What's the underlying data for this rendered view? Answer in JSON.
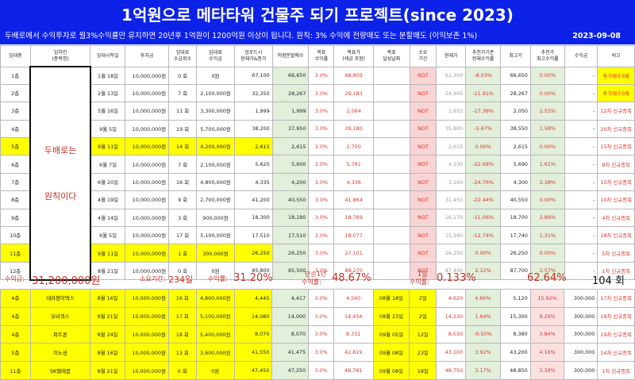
{
  "header": {
    "title": "1억원으로 메타타워 건물주 되기 프로젝트(since 2023)",
    "description": "두배로에서 수익투자로 월3%수익률만 유지하면 20년후 1억원이 1200억원 이상이 됩니다. 원칙: 3% 수익에 전량매도 또는 분할매도 (이익보존 1%)",
    "date": "2023-09-08"
  },
  "columns": [
    "임대층",
    "임차인\n(종목명)",
    "임대시작일",
    "투자금",
    "임대료\n수금회수",
    "임대료\n수익금",
    "업로드시\n현재가&종가",
    "저점분할매수",
    "목표\n수익률",
    "목표가\n(세금 포함)",
    "목표\n달성날짜",
    "소요\n기간",
    "현재가",
    "추천가기준\n현재수익률",
    "최고가",
    "추천가\n최고수익률",
    "수익금",
    "비고"
  ],
  "tenant_note": {
    "line1": "두배로는",
    "line2": "원칙이다"
  },
  "rows": [
    {
      "floor": "1층",
      "start": "1월 18일",
      "invest": "10,000,000원",
      "count": "0 회",
      "income": "0원",
      "upload": "67,100",
      "low": "66,650",
      "target_rate": "3.0%",
      "target": "68,809",
      "achieved": "",
      "period": "NOT",
      "current": "61,300",
      "cur_rate": "-8.03%",
      "high": "66,650",
      "high_rate": "0.00%",
      "profit": "-",
      "note": "추가매수5배"
    },
    {
      "floor": "2층",
      "start": "2월 13일",
      "invest": "10,000,000원",
      "count": "7 회",
      "income": "2,100,000원",
      "upload": "32,350",
      "low": "28,267",
      "target_rate": "3.0%",
      "target": "29,183",
      "achieved": "",
      "period": "NOT",
      "current": "24,900",
      "cur_rate": "-11.91%",
      "high": "28,267",
      "high_rate": "0.00%",
      "profit": "-",
      "note": "추가매수5배"
    },
    {
      "floor": "3층",
      "start": "5월 16일",
      "invest": "10,000,000원",
      "count": "11 회",
      "income": "3,300,000원",
      "upload": "1,999",
      "low": "1,999",
      "target_rate": "3.0%",
      "target": "2,064",
      "achieved": "",
      "period": "NOT",
      "current": "1,652",
      "cur_rate": "-17.36%",
      "high": "2,050",
      "high_rate": "2.55%",
      "profit": "-",
      "note": "12차 신규종목"
    },
    {
      "floor": "4층",
      "start": "9월 5일",
      "invest": "10,000,000원",
      "count": "19 회",
      "income": "5,700,000원",
      "upload": "38,200",
      "low": "37,950",
      "target_rate": "3.0%",
      "target": "39,180",
      "achieved": "",
      "period": "NOT",
      "current": "35,800",
      "cur_rate": "-5.67%",
      "high": "38,550",
      "high_rate": "1.58%",
      "profit": "-",
      "note": "20차 신규종목"
    },
    {
      "floor": "5층",
      "start": "9월 11일",
      "invest": "10,000,000원",
      "count": "14 회",
      "income": "4,200,000원",
      "upload": "2,615",
      "low": "2,615",
      "target_rate": "3.0%",
      "target": "2,700",
      "achieved": "",
      "period": "NOT",
      "current": "2,615",
      "cur_rate": "0.00%",
      "high": "2,615",
      "high_rate": "0.00%",
      "profit": "-",
      "note": "15차 신규종목",
      "yellow": true
    },
    {
      "floor": "6층",
      "start": "6월 7일",
      "invest": "10,000,000원",
      "count": "7 회",
      "income": "2,100,000원",
      "upload": "5,620",
      "low": "5,600",
      "target_rate": "3.0%",
      "target": "5,781",
      "achieved": "",
      "period": "NOT",
      "current": "4,330",
      "cur_rate": "-22.68%",
      "high": "5,690",
      "high_rate": "1.61%",
      "profit": "-",
      "note": "8차 신규종목"
    },
    {
      "floor": "7층",
      "start": "6월 20일",
      "invest": "10,000,000원",
      "count": "16 회",
      "income": "4,800,000원",
      "upload": "4,335",
      "low": "4,200",
      "target_rate": "3.0%",
      "target": "4,336",
      "achieved": "",
      "period": "NOT",
      "current": "3,160",
      "cur_rate": "-24.76%",
      "high": "4,300",
      "high_rate": "2.38%",
      "profit": "-",
      "note": "10차 신규종목"
    },
    {
      "floor": "8층",
      "start": "4월 19일",
      "invest": "10,000,000원",
      "count": "9 회",
      "income": "2,700,000원",
      "upload": "41,200",
      "low": "40,550",
      "target_rate": "3.0%",
      "target": "41,864",
      "achieved": "",
      "period": "NOT",
      "current": "31,450",
      "cur_rate": "-22.44%",
      "high": "40,550",
      "high_rate": "0.00%",
      "profit": "-",
      "note": "10차 신규종목"
    },
    {
      "floor": "9층",
      "start": "4월 14일",
      "invest": "10,000,000원",
      "count": "3 회",
      "income": "900,000원",
      "upload": "18,300",
      "low": "18,180",
      "target_rate": "3.0%",
      "target": "18,769",
      "achieved": "",
      "period": "NOT",
      "current": "16,170",
      "cur_rate": "-11.06%",
      "high": "18,700",
      "high_rate": "2.86%",
      "profit": "-",
      "note": "4차 신규종목"
    },
    {
      "floor": "10층",
      "start": "6월 5일",
      "invest": "10,000,000원",
      "count": "17 회",
      "income": "5,100,000원",
      "upload": "17,510",
      "low": "17,510",
      "target_rate": "3.0%",
      "target": "18,077",
      "achieved": "",
      "period": "NOT",
      "current": "15,280",
      "cur_rate": "-12.74%",
      "high": "17,740",
      "high_rate": "1.31%",
      "profit": "-",
      "note": "18차 신규종목"
    },
    {
      "floor": "11층",
      "start": "9월 11일",
      "invest": "10,000,000원",
      "count": "1 회",
      "income": "300,000원",
      "upload": "26,250",
      "low": "26,250",
      "target_rate": "3.0%",
      "target": "27,101",
      "achieved": "",
      "period": "NOT",
      "current": "26,250",
      "cur_rate": "0.00%",
      "high": "26,250",
      "high_rate": "0.00%",
      "profit": "-",
      "note": "5차 신규종목",
      "yellow": true
    },
    {
      "floor": "12층",
      "start": "8월 21일",
      "invest": "10,000,000원",
      "count": "0 회",
      "income": "0원",
      "upload": "85,800",
      "low": "85,500",
      "target_rate": "3.0%",
      "target": "88,270",
      "achieved": "",
      "period": "NOT",
      "current": "87,400",
      "cur_rate": "2.22%",
      "high": "87,700",
      "high_rate": "2.57%",
      "profit": "-",
      "note": "1차 신규종목"
    }
  ],
  "summary": {
    "profit_label": "수익금:",
    "profit_value": "31,200,000원",
    "period_label": "소요기간:",
    "period_value": "234일",
    "rate_label": "수익률:",
    "rate_value": "31.20%",
    "simple_label1": "단순1년",
    "simple_label2": "수익률:",
    "simple_value": "48.67%",
    "daily_label1": "1일",
    "daily_label2": "수익률:",
    "daily_value": "0.133%",
    "high_rate": "62.64%",
    "count": "104 회"
  },
  "completed": [
    {
      "floor": "4층",
      "name": "테라젠이텍스",
      "start": "8월 16일",
      "invest": "10,000,000원",
      "count": "16 회",
      "income": "4,800,000원",
      "upload": "4,445",
      "low": "4,417",
      "target_rate": "3.0%",
      "target": "4,560",
      "achieved": "08월 18일",
      "period": "2일",
      "current": "4,620",
      "cur_rate": "4.60%",
      "high": "5,120",
      "high_rate": "15.92%",
      "profit": "300,000",
      "note": "17차 신규종목"
    },
    {
      "floor": "4층",
      "name": "유비쿼스",
      "start": "8월 21일",
      "invest": "10,000,000원",
      "count": "17 회",
      "income": "5,100,000원",
      "upload": "14,080",
      "low": "14,000",
      "target_rate": "3.0%",
      "target": "14,454",
      "achieved": "08월 23일",
      "period": "2일",
      "current": "14,230",
      "cur_rate": "1.64%",
      "high": "15,300",
      "high_rate": "9.29%",
      "profit": "300,000",
      "note": "18차 신규종목"
    },
    {
      "floor": "4층",
      "name": "파트론",
      "start": "8월 24일",
      "invest": "10,000,000원",
      "count": "18 회",
      "income": "5,400,000원",
      "upload": "8,070",
      "low": "8,070",
      "target_rate": "3.0%",
      "target": "8,331",
      "achieved": "09월 05일",
      "period": "12일",
      "current": "8,030",
      "cur_rate": "-0.50%",
      "high": "8,380",
      "high_rate": "3.84%",
      "profit": "300,000",
      "note": "19차 신규종목"
    },
    {
      "floor": "5층",
      "name": "이노션",
      "start": "8월 16일",
      "invest": "10,000,000원",
      "count": "13 회",
      "income": "3,900,000원",
      "upload": "41,550",
      "low": "41,475",
      "target_rate": "3.0%",
      "target": "42,819",
      "achieved": "09월 08일",
      "period": "23일",
      "current": "43,100",
      "cur_rate": "3.92%",
      "high": "43,200",
      "high_rate": "4.16%",
      "profit": "300,000",
      "note": "14차 신규종목"
    },
    {
      "floor": "11층",
      "name": "SK텔레콤",
      "start": "8월 21일",
      "invest": "10,000,000원",
      "count": "0 회",
      "income": "0원",
      "upload": "47,450",
      "low": "47,250",
      "target_rate": "3.0%",
      "target": "48,781",
      "achieved": "09월 08일",
      "period": "18일",
      "current": "48,750",
      "cur_rate": "3.17%",
      "high": "48,850",
      "high_rate": "3.39%",
      "profit": "300,000",
      "note": "1차 신규종목"
    }
  ],
  "colors": {
    "title_bg": "#0c22e8",
    "accent_red": "#d8342c",
    "highlight_yellow": "#ffff00",
    "green_cell": "#e2efda",
    "not_cell": "#f9d4d4"
  }
}
